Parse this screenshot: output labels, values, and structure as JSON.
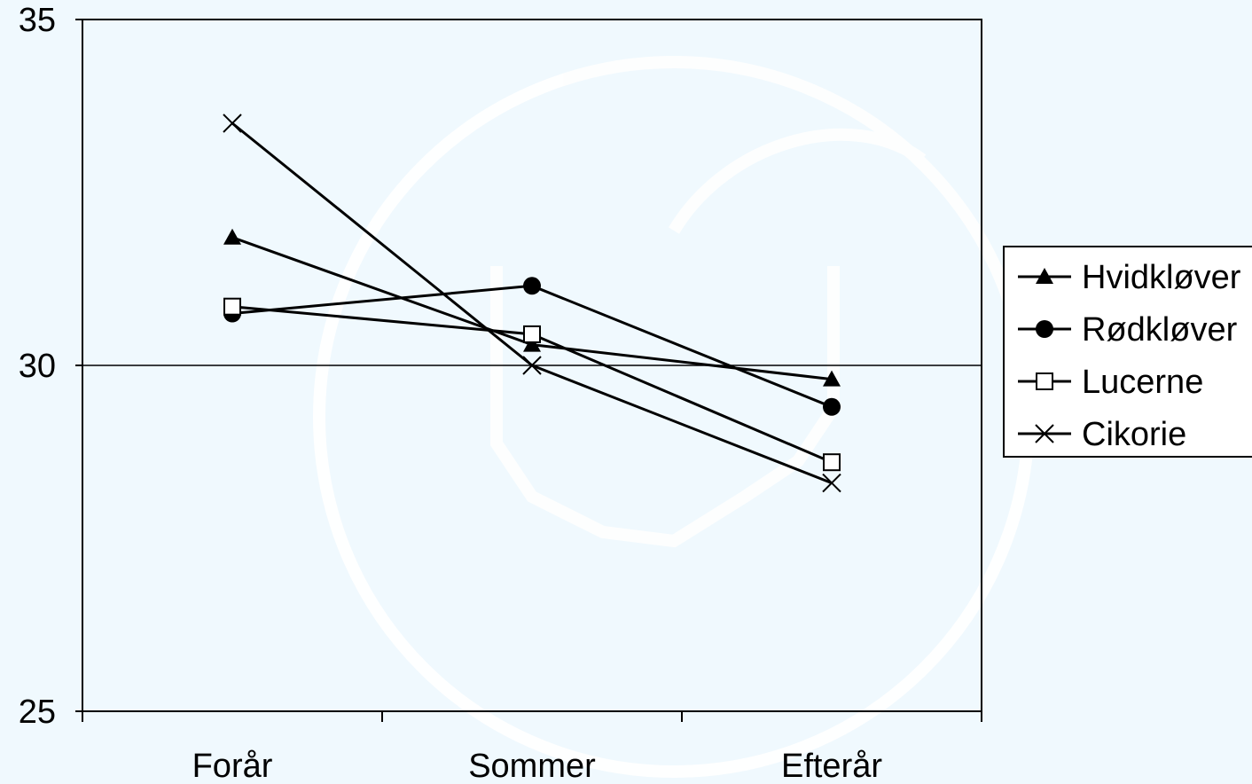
{
  "chart_data": {
    "type": "line",
    "categories": [
      "Forår",
      "Sommer",
      "Efterår"
    ],
    "ylim": [
      25,
      35
    ],
    "yticks": [
      25,
      30,
      35
    ],
    "gridlines_y": [
      30
    ],
    "legend_position": "right",
    "series": [
      {
        "name": "Hvidkløver",
        "marker": "triangle",
        "values": [
          31.85,
          30.3,
          29.8
        ]
      },
      {
        "name": "Rødkløver",
        "marker": "circle",
        "values": [
          30.75,
          31.15,
          29.4
        ]
      },
      {
        "name": "Lucerne",
        "marker": "square",
        "values": [
          30.85,
          30.45,
          28.6
        ]
      },
      {
        "name": "Cikorie",
        "marker": "x",
        "values": [
          33.5,
          30.0,
          28.3
        ]
      }
    ]
  }
}
